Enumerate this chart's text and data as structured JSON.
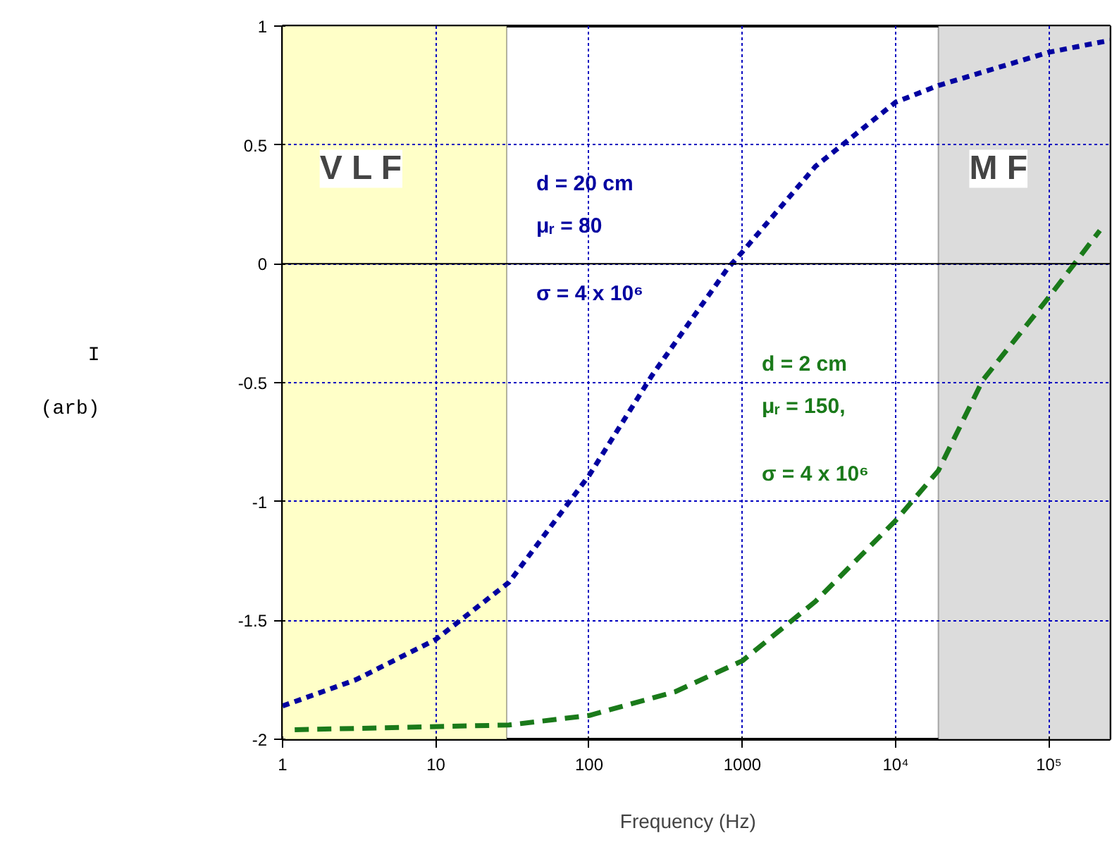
{
  "chart_data": {
    "type": "line",
    "xlabel": "Frequency    (Hz)",
    "ylabel": "I\n\n(arb)",
    "log": "x",
    "xlim": [
      1,
      250000
    ],
    "ylim": [
      -2,
      1
    ],
    "xticks": [
      1,
      10,
      100,
      1000,
      {
        "value": 10000,
        "label": "10⁴"
      },
      {
        "value": 100000,
        "label": "10⁵"
      }
    ],
    "yticks": [
      -2,
      -1.5,
      -1,
      -0.5,
      0,
      0.5,
      1
    ],
    "grid": true,
    "series": [
      {
        "color": "#0000a0",
        "line_style": "dotted",
        "x": [
          1,
          3,
          10,
          30,
          100,
          257,
          800,
          1000,
          3000,
          10000,
          19000,
          100000,
          250000
        ],
        "values": [
          -1.86,
          -1.75,
          -1.58,
          -1.34,
          -0.89,
          -0.47,
          -0.02,
          0.05,
          0.41,
          0.68,
          0.75,
          0.89,
          0.94
        ]
      },
      {
        "color": "#1a7a1a",
        "line_style": "dashed",
        "x": [
          1.2,
          30,
          100,
          365,
          1000,
          3000,
          10000,
          19000,
          37000,
          100000,
          215000
        ],
        "values": [
          -1.96,
          -1.94,
          -1.9,
          -1.8,
          -1.67,
          -1.42,
          -1.08,
          -0.87,
          -0.49,
          -0.14,
          0.14
        ]
      }
    ],
    "ref_lines": [
      {
        "axis": "y",
        "value": 0,
        "color": "#000000"
      }
    ],
    "bands": [
      {
        "axis": "x",
        "from": 1,
        "to": 29,
        "label": "V L F",
        "color": "#ffffc8"
      },
      {
        "axis": "x",
        "from": 19000,
        "to": 250000,
        "label": "M F",
        "color": "#dcdcdc"
      }
    ],
    "annotations": [
      "d = 20 cm",
      "μᵣ = 80",
      "σ = 4 x 10⁶",
      "d = 2 cm",
      "μᵣ = 150,",
      "σ = 4 x 10⁶"
    ]
  }
}
